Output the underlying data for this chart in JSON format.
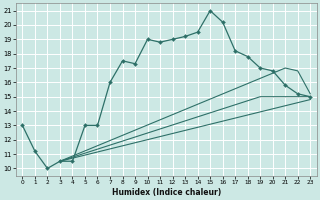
{
  "xlabel": "Humidex (Indice chaleur)",
  "bg_color": "#cce8e4",
  "grid_color": "#ffffff",
  "line_color": "#2e7068",
  "xlim": [
    -0.5,
    23.5
  ],
  "ylim": [
    9.5,
    21.5
  ],
  "xticks": [
    0,
    1,
    2,
    3,
    4,
    5,
    6,
    7,
    8,
    9,
    10,
    11,
    12,
    13,
    14,
    15,
    16,
    17,
    18,
    19,
    20,
    21,
    22,
    23
  ],
  "yticks": [
    10,
    11,
    12,
    13,
    14,
    15,
    16,
    17,
    18,
    19,
    20,
    21
  ],
  "line1_x": [
    0,
    1,
    2,
    3,
    4,
    5,
    6,
    7,
    8,
    9,
    10,
    11,
    12,
    13,
    14,
    15,
    16,
    17,
    18,
    19,
    20,
    21,
    22,
    23
  ],
  "line1_y": [
    13,
    11.2,
    10,
    10.5,
    10.5,
    13,
    13,
    16,
    17.5,
    17.3,
    19,
    18.8,
    19,
    19.2,
    19.5,
    21,
    20.2,
    18.2,
    17.8,
    17.0,
    16.8,
    15.8,
    15.2,
    15.0
  ],
  "line2_x": [
    3,
    21,
    22,
    23
  ],
  "line2_y": [
    10.5,
    17.0,
    16.8,
    15.2
  ],
  "line3_x": [
    3,
    19,
    23
  ],
  "line3_y": [
    10.5,
    15.0,
    15.0
  ],
  "line4_x": [
    3,
    23
  ],
  "line4_y": [
    10.5,
    14.8
  ]
}
